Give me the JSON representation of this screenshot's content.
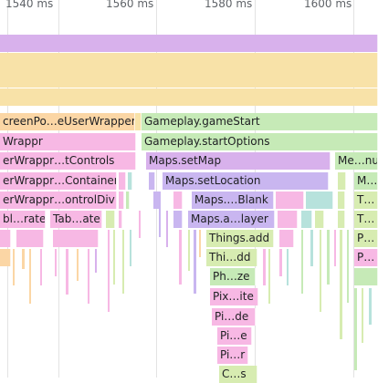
{
  "ruler": {
    "ticks": [
      "1540 ms",
      "1560 ms",
      "1580 ms",
      "1600 ms"
    ]
  },
  "colors": {
    "violet": "#d8b1ec",
    "yellow": "#f8e2a8",
    "peach": "#fbd6a5",
    "pink": "#f7b8e4",
    "green": "#c6eab7",
    "lavender": "#c9b6f0",
    "teal": "#b7e2dc",
    "lime": "#d7ecb1"
  },
  "flame": {
    "row5": {
      "left": "creenPo…eUserWrapper",
      "right": "Gameplay.gameStart"
    },
    "row6": {
      "left": "Wrappr",
      "right": "Gameplay.startOptions"
    },
    "row7": {
      "left": "erWrappr…tControls",
      "mid": "Maps.setMap",
      "right": "Me…nu"
    },
    "row8": {
      "left": "erWrappr…Container",
      "mid": "Maps.setLocation",
      "right": "M…"
    },
    "row9": {
      "left": "erWrappr…ontrolDiv",
      "mid": "Maps.…Blank",
      "right": "T…"
    },
    "row10": {
      "left1": "bl…rate",
      "left2": "Tab…ate",
      "mid": "Maps.a…layer",
      "right": "T…"
    },
    "row11": {
      "mid": "Things.add",
      "right": "P…"
    },
    "row12": {
      "mid": "Thi…dd",
      "right": "P…"
    },
    "row13": {
      "mid": "Ph…ze"
    },
    "row14": {
      "mid": "Pix…ite"
    },
    "row15": {
      "mid": "Pi…de"
    },
    "row16": {
      "mid": "Pi…e"
    },
    "row17": {
      "mid": "Pi…r"
    },
    "row18": {
      "mid": "C…s"
    }
  }
}
